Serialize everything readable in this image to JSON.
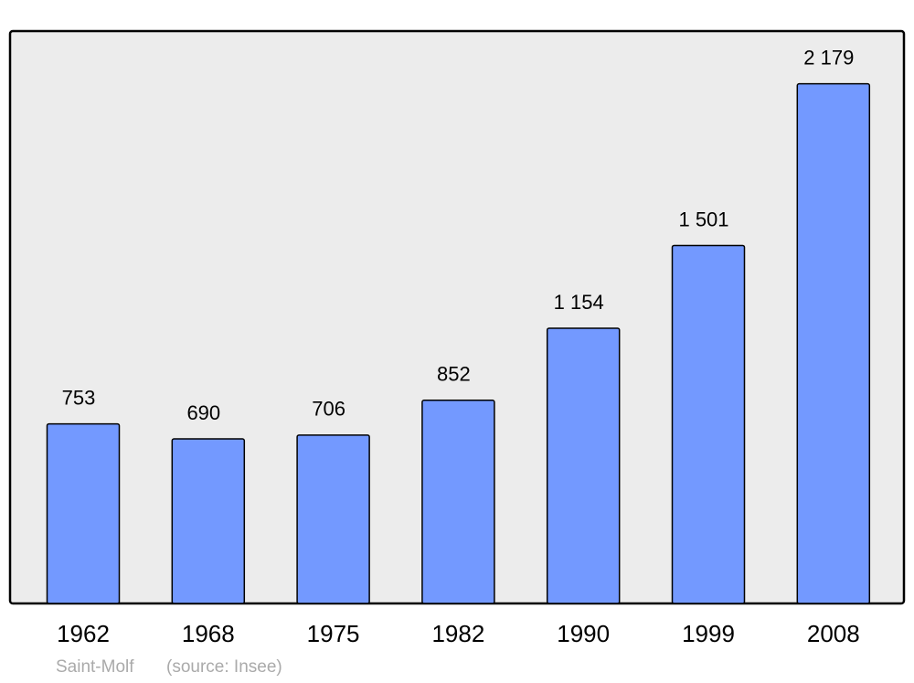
{
  "chart_data": {
    "type": "bar",
    "categories": [
      "1962",
      "1968",
      "1975",
      "1982",
      "1990",
      "1999",
      "2008"
    ],
    "values": [
      753,
      690,
      706,
      852,
      1154,
      1501,
      2179
    ],
    "value_labels": [
      "753",
      "690",
      "706",
      "852",
      "1 154",
      "1 501",
      "2 179"
    ],
    "color": "#7399ff",
    "ylim": [
      0,
      2400
    ],
    "caption": "Saint-Molf",
    "source": "(source: Insee)"
  }
}
